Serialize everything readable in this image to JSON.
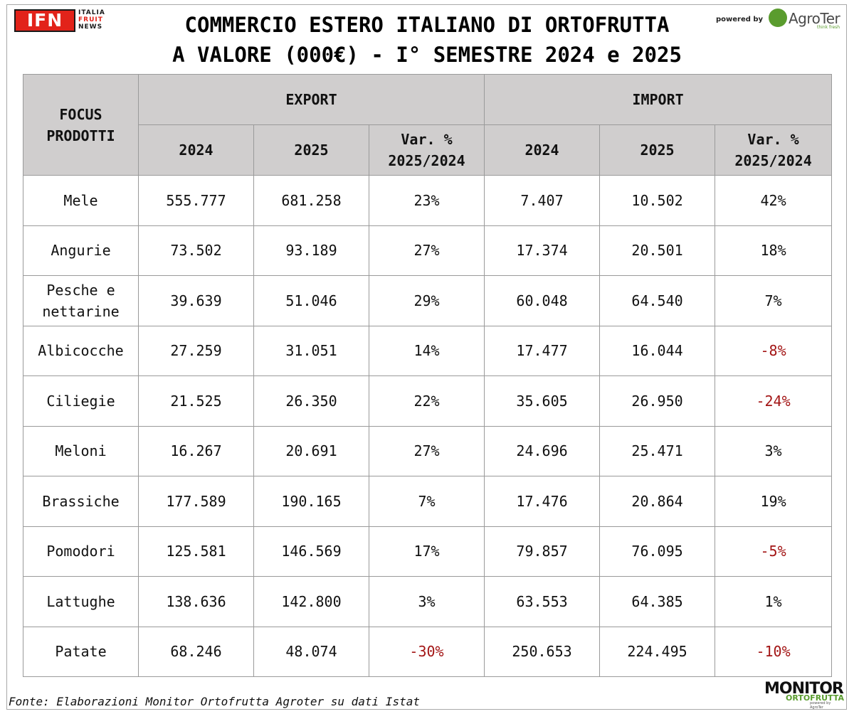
{
  "header": {
    "logo_text": "IFN",
    "logo_words": [
      "ITALIA",
      "FRUIT",
      "NEWS"
    ],
    "title_line1": "COMMERCIO ESTERO ITALIANO DI ORTOFRUTTA",
    "title_line2": "A VALORE (000€) - I° SEMESTRE 2024 e 2025",
    "powered_by": "powered by",
    "partner_logo": "AgroTer",
    "partner_tagline": "think fresh"
  },
  "table": {
    "corner_header": "FOCUS PRODOTTI",
    "group_headers": [
      "EXPORT",
      "IMPORT"
    ],
    "sub_headers": [
      "2024",
      "2025",
      "Var. % 2025/2024",
      "2024",
      "2025",
      "Var. % 2025/2024"
    ],
    "rows": [
      {
        "product": "Mele",
        "exp_2024": "555.777",
        "exp_2025": "681.258",
        "exp_var": "23%",
        "imp_2024": "7.407",
        "imp_2025": "10.502",
        "imp_var": "42%"
      },
      {
        "product": "Angurie",
        "exp_2024": "73.502",
        "exp_2025": "93.189",
        "exp_var": "27%",
        "imp_2024": "17.374",
        "imp_2025": "20.501",
        "imp_var": "18%"
      },
      {
        "product": "Pesche e nettarine",
        "exp_2024": "39.639",
        "exp_2025": "51.046",
        "exp_var": "29%",
        "imp_2024": "60.048",
        "imp_2025": "64.540",
        "imp_var": "7%"
      },
      {
        "product": "Albicocche",
        "exp_2024": "27.259",
        "exp_2025": "31.051",
        "exp_var": "14%",
        "imp_2024": "17.477",
        "imp_2025": "16.044",
        "imp_var": "-8%"
      },
      {
        "product": "Ciliegie",
        "exp_2024": "21.525",
        "exp_2025": "26.350",
        "exp_var": "22%",
        "imp_2024": "35.605",
        "imp_2025": "26.950",
        "imp_var": "-24%"
      },
      {
        "product": "Meloni",
        "exp_2024": "16.267",
        "exp_2025": "20.691",
        "exp_var": "27%",
        "imp_2024": "24.696",
        "imp_2025": "25.471",
        "imp_var": "3%"
      },
      {
        "product": "Brassiche",
        "exp_2024": "177.589",
        "exp_2025": "190.165",
        "exp_var": "7%",
        "imp_2024": "17.476",
        "imp_2025": "20.864",
        "imp_var": "19%"
      },
      {
        "product": "Pomodori",
        "exp_2024": "125.581",
        "exp_2025": "146.569",
        "exp_var": "17%",
        "imp_2024": "79.857",
        "imp_2025": "76.095",
        "imp_var": "-5%"
      },
      {
        "product": "Lattughe",
        "exp_2024": "138.636",
        "exp_2025": "142.800",
        "exp_var": "3%",
        "imp_2024": "63.553",
        "imp_2025": "64.385",
        "imp_var": "1%"
      },
      {
        "product": "Patate",
        "exp_2024": "68.246",
        "exp_2025": "48.074",
        "exp_var": "-30%",
        "imp_2024": "250.653",
        "imp_2025": "224.495",
        "imp_var": "-10%"
      }
    ]
  },
  "footer": {
    "source": "Fonte: Elaborazioni Monitor Ortofrutta Agroter su dati Istat",
    "monitor_logo_line1": "MONITOR",
    "monitor_logo_line2": "ORTOFRUTTA",
    "monitor_logo_line3": "powered by AgroTer"
  },
  "colors": {
    "header_fill": "#d0cece",
    "negative_text": "#a31515",
    "ifn_red": "#e2231a",
    "agroter_green": "#5a9c2e"
  }
}
